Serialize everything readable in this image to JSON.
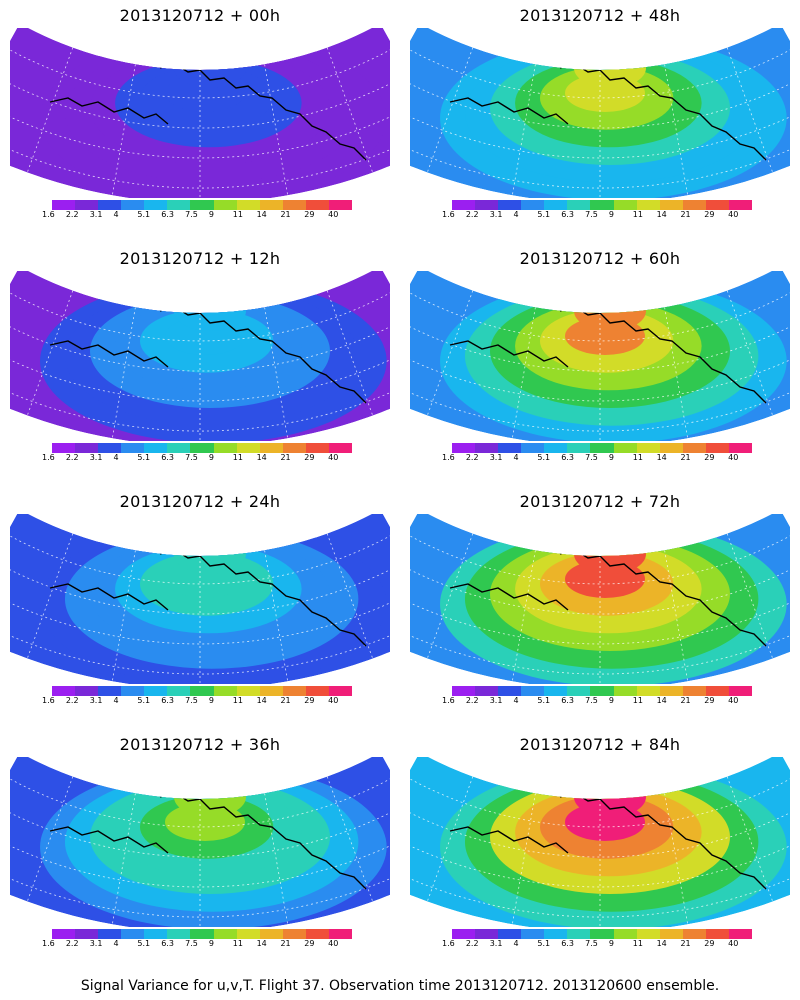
{
  "caption": "Signal Variance for u,v,T. Flight 37. Observation time 2013120712. 2013120600 ensemble.",
  "colorbar": {
    "labels": [
      "1.6",
      "2.2",
      "3.1",
      "4",
      "5.1",
      "6.3",
      "7.5",
      "9",
      "11",
      "14",
      "21",
      "29",
      "40"
    ],
    "colors": [
      "#9b1ff0",
      "#7a28d8",
      "#2e50e6",
      "#2a8cf0",
      "#19b6ee",
      "#2ad0b8",
      "#30c850",
      "#96dc28",
      "#d2dc28",
      "#ecb428",
      "#ee8232",
      "#f04e3a",
      "#f01e78"
    ]
  },
  "panels": [
    {
      "title": "2013120712 + 00h",
      "intensity": 0.15
    },
    {
      "title": "2013120712 + 48h",
      "intensity": 0.62
    },
    {
      "title": "2013120712 + 12h",
      "intensity": 0.3
    },
    {
      "title": "2013120712 + 60h",
      "intensity": 0.72
    },
    {
      "title": "2013120712 + 24h",
      "intensity": 0.4
    },
    {
      "title": "2013120712 + 72h",
      "intensity": 0.8
    },
    {
      "title": "2013120712 + 36h",
      "intensity": 0.52
    },
    {
      "title": "2013120712 + 84h",
      "intensity": 0.88
    }
  ]
}
